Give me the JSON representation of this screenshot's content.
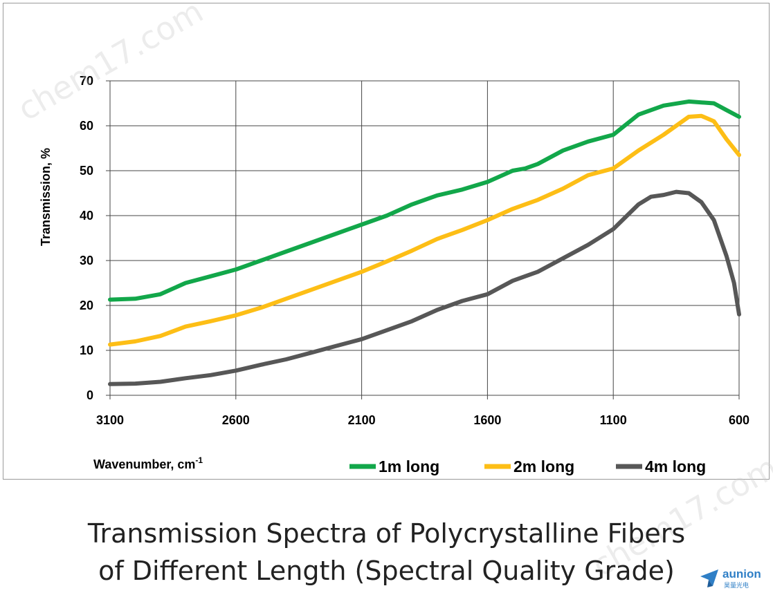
{
  "chart_data": {
    "type": "line",
    "xlabel": "Wavenumber, cm",
    "xlabel_sup": "-1",
    "ylabel": "Transmission, %",
    "xlim": [
      3100,
      600
    ],
    "ylim": [
      0,
      70
    ],
    "x_ticks": [
      "3100",
      "2600",
      "2100",
      "1600",
      "1100",
      "600"
    ],
    "y_ticks": [
      "0",
      "10",
      "20",
      "30",
      "40",
      "50",
      "60",
      "70"
    ],
    "grid": true,
    "legend_position": "bottom",
    "series": [
      {
        "name": "1m long",
        "color": "#12a74a",
        "points": [
          [
            3100,
            21.3
          ],
          [
            3000,
            21.5
          ],
          [
            2900,
            22.5
          ],
          [
            2800,
            25
          ],
          [
            2700,
            26.5
          ],
          [
            2600,
            28
          ],
          [
            2500,
            30
          ],
          [
            2400,
            32
          ],
          [
            2300,
            34
          ],
          [
            2200,
            36
          ],
          [
            2100,
            38
          ],
          [
            2000,
            40
          ],
          [
            1900,
            42.5
          ],
          [
            1800,
            44.5
          ],
          [
            1700,
            45.8
          ],
          [
            1600,
            47.5
          ],
          [
            1500,
            50
          ],
          [
            1450,
            50.5
          ],
          [
            1400,
            51.5
          ],
          [
            1300,
            54.5
          ],
          [
            1200,
            56.5
          ],
          [
            1100,
            58
          ],
          [
            1000,
            62.5
          ],
          [
            900,
            64.5
          ],
          [
            800,
            65.4
          ],
          [
            700,
            65
          ],
          [
            650,
            63.5
          ],
          [
            600,
            62
          ]
        ]
      },
      {
        "name": "2m long",
        "color": "#fdbe16",
        "points": [
          [
            3100,
            11.3
          ],
          [
            3000,
            12
          ],
          [
            2900,
            13.2
          ],
          [
            2800,
            15.3
          ],
          [
            2700,
            16.5
          ],
          [
            2600,
            17.8
          ],
          [
            2500,
            19.5
          ],
          [
            2400,
            21.5
          ],
          [
            2300,
            23.5
          ],
          [
            2200,
            25.5
          ],
          [
            2100,
            27.5
          ],
          [
            2000,
            29.8
          ],
          [
            1900,
            32.2
          ],
          [
            1800,
            34.8
          ],
          [
            1700,
            36.8
          ],
          [
            1600,
            39
          ],
          [
            1500,
            41.5
          ],
          [
            1400,
            43.5
          ],
          [
            1300,
            46
          ],
          [
            1200,
            49
          ],
          [
            1100,
            50.5
          ],
          [
            1000,
            54.5
          ],
          [
            900,
            58
          ],
          [
            800,
            62
          ],
          [
            750,
            62.2
          ],
          [
            700,
            61
          ],
          [
            650,
            57
          ],
          [
            600,
            53.5
          ]
        ]
      },
      {
        "name": "4m long",
        "color": "#575757",
        "points": [
          [
            3100,
            2.5
          ],
          [
            3000,
            2.6
          ],
          [
            2900,
            3
          ],
          [
            2800,
            3.8
          ],
          [
            2700,
            4.5
          ],
          [
            2600,
            5.5
          ],
          [
            2500,
            6.8
          ],
          [
            2400,
            8
          ],
          [
            2300,
            9.5
          ],
          [
            2200,
            11
          ],
          [
            2100,
            12.5
          ],
          [
            2000,
            14.5
          ],
          [
            1900,
            16.5
          ],
          [
            1800,
            19
          ],
          [
            1700,
            21
          ],
          [
            1600,
            22.5
          ],
          [
            1500,
            25.5
          ],
          [
            1400,
            27.5
          ],
          [
            1300,
            30.5
          ],
          [
            1200,
            33.5
          ],
          [
            1100,
            37
          ],
          [
            1000,
            42.5
          ],
          [
            950,
            44.2
          ],
          [
            900,
            44.6
          ],
          [
            850,
            45.3
          ],
          [
            800,
            45
          ],
          [
            750,
            43
          ],
          [
            700,
            39
          ],
          [
            650,
            31
          ],
          [
            620,
            25
          ],
          [
            600,
            18
          ]
        ]
      }
    ]
  },
  "caption": {
    "line1": "Transmission Spectra of Polycrystalline Fibers",
    "line2": "of Different Length (Spectral Quality Grade)"
  },
  "brand": {
    "name": "aunion",
    "sub": "昊量光电",
    "color": "#2f7fc6"
  },
  "watermark": {
    "text": "chem17.com"
  }
}
